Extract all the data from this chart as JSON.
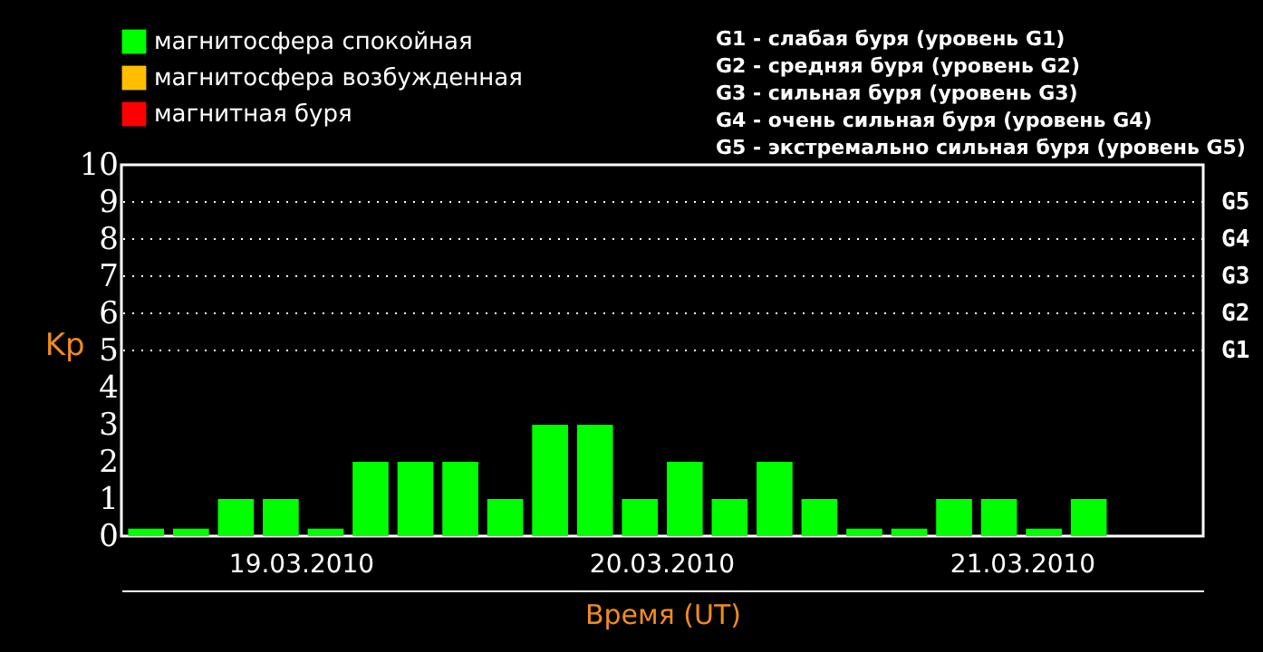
{
  "chart_data": {
    "type": "bar",
    "xlabel": "Время (UT)",
    "ylabel": "Kp",
    "categories": [
      null,
      null,
      null,
      null,
      null,
      null,
      null,
      null,
      null,
      null,
      null,
      null,
      null,
      null,
      null,
      null,
      null,
      null,
      null,
      null,
      null,
      null,
      null,
      null
    ],
    "series": [
      {
        "name": "магнитосфера спокойная",
        "color": "#00ff00",
        "values": [
          0.2,
          0.2,
          1,
          1,
          0.2,
          2,
          2,
          2,
          1,
          3,
          3,
          1,
          2,
          1,
          2,
          1,
          0.2,
          0.2,
          1,
          1,
          0.2,
          1,
          null,
          null
        ]
      },
      {
        "name": "магнитосфера возбужденная",
        "color": "#ffbf00",
        "values": [
          null,
          null,
          null,
          null,
          null,
          null,
          null,
          null,
          null,
          null,
          null,
          null,
          null,
          null,
          null,
          null,
          null,
          null,
          null,
          null,
          null,
          null,
          null,
          null
        ]
      },
      {
        "name": "магнитная буря",
        "color": "#ff0000",
        "values": [
          null,
          null,
          null,
          null,
          null,
          null,
          null,
          null,
          null,
          null,
          null,
          null,
          null,
          null,
          null,
          null,
          null,
          null,
          null,
          null,
          null,
          null,
          null,
          null
        ]
      }
    ],
    "ylim": [
      0,
      10
    ],
    "yticks": [
      0,
      1,
      2,
      3,
      4,
      5,
      6,
      7,
      8,
      9,
      10
    ],
    "ref_lines": [
      {
        "axis": "y",
        "value": 5,
        "label": "G1",
        "color": "#ffffff",
        "line_style": "dotted"
      },
      {
        "axis": "y",
        "value": 6,
        "label": "G2",
        "color": "#ffffff",
        "line_style": "dotted"
      },
      {
        "axis": "y",
        "value": 7,
        "label": "G3",
        "color": "#ffffff",
        "line_style": "dotted"
      },
      {
        "axis": "y",
        "value": 8,
        "label": "G4",
        "color": "#ffffff",
        "line_style": "dotted"
      },
      {
        "axis": "y",
        "value": 9,
        "label": "G5",
        "color": "#ffffff",
        "line_style": "dotted"
      }
    ],
    "annotations": [
      "19.03.2010",
      "20.03.2010",
      "21.03.2010",
      "G1 - слабая буря (уровень G1)",
      "G2 - средняя буря (уровень G2)",
      "G3 - сильная буря (уровень G3)",
      "G4 - очень сильная буря (уровень G4)",
      "G5 - экстремально сильная буря (уровень G5)"
    ],
    "legend": "top left",
    "grid": false
  }
}
